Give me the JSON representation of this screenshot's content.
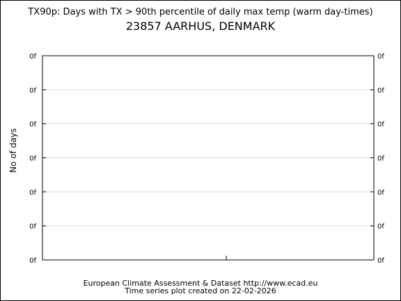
{
  "header": {
    "title": "TX90p: Days with TX > 90th percentile of daily max temp (warm day-times)",
    "subtitle": "23857 AARHUS, DENMARK"
  },
  "footer": {
    "line1": "European Climate Assessment & Dataset  http://www.ecad.eu",
    "line2": "Time series plot created on 22-02-2026"
  },
  "chart_data": {
    "type": "line",
    "title": "TX90p: Days with TX > 90th percentile of daily max temp (warm day-times)",
    "subtitle": "23857 AARHUS, DENMARK",
    "ylabel": "No of days",
    "xlabel": "",
    "y_tick_labels": [
      "0f",
      "0f",
      "0f",
      "0f",
      "0f",
      "0f",
      "0f"
    ],
    "series": [],
    "grid": true,
    "legend": "none"
  },
  "colors": {
    "background": "#ffffff",
    "axis": "#000000",
    "grid": "#d9d9d9"
  }
}
